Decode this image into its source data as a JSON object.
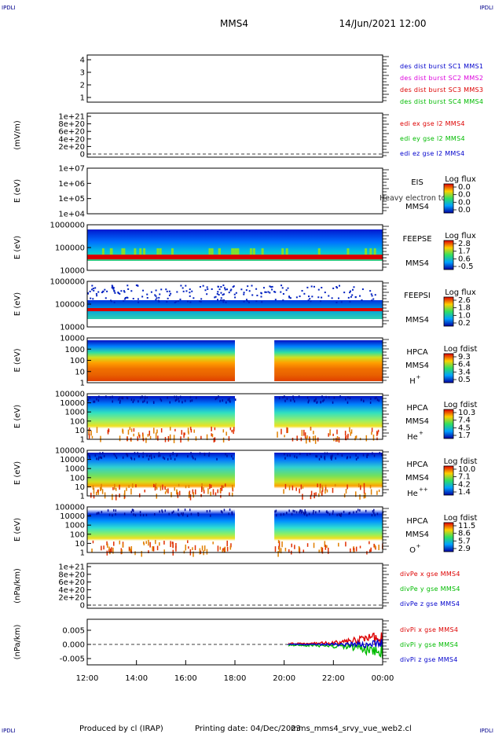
{
  "header": {
    "mission": "MMS4",
    "datetime": "14/Jun/2021 12:00",
    "corner_label": "IPDLI"
  },
  "footer": {
    "producer": "Produced by cl (IRAP)",
    "printing": "Printing date: 04/Dec/2023",
    "script": "mms_mms4_srvy_vue_web2.cl"
  },
  "colors": {
    "blue": "#0000cc",
    "magenta": "#dd00dd",
    "red": "#dd0000",
    "green": "#00bb00"
  },
  "chart_data": {
    "type": "heatmap",
    "x_ticks": [
      "12:00",
      "14:00",
      "16:00",
      "18:00",
      "20:00",
      "22:00",
      "00:00"
    ],
    "panels": [
      {
        "id": "des",
        "type": "line",
        "ylabel": "",
        "y_ticks": [
          "4",
          "3",
          "2",
          "1"
        ],
        "legend": [
          {
            "text": "des dist burst SC1 MMS1",
            "color": "blue"
          },
          {
            "text": "des dist burst SC2 MMS2",
            "color": "magenta"
          },
          {
            "text": "des dist burst SC3 MMS3",
            "color": "red"
          },
          {
            "text": "des dist burst SC4 MMS4",
            "color": "green"
          }
        ]
      },
      {
        "id": "edi",
        "type": "line",
        "ylabel": "(mV/m)",
        "y_ticks": [
          "1e+21",
          "8e+20",
          "6e+20",
          "4e+20",
          "2e+20",
          "0"
        ],
        "legend": [
          {
            "text": "edi ex gse l2 MMS4",
            "color": "red"
          },
          {
            "text": "edi ey gse l2 MMS4",
            "color": "green"
          },
          {
            "text": "edi ez gse l2 MMS4",
            "color": "blue"
          }
        ]
      },
      {
        "id": "eis",
        "type": "heatmap",
        "ylabel": "E (eV)",
        "y_ticks": [
          "1e+07",
          "1e+06",
          "1e+05",
          "1e+04"
        ],
        "instrument": [
          "EIS",
          "MMS4"
        ],
        "overlap_text": "Heavy electron to",
        "colorbar_title": "Log flux",
        "colorbar_ticks": [
          "0.0",
          "0.0",
          "0.0",
          "0.0"
        ]
      },
      {
        "id": "feepse",
        "type": "heatmap",
        "ylabel": "E (eV)",
        "y_ticks": [
          "1000000",
          "100000",
          "10000"
        ],
        "instrument": [
          "FEEPSE",
          "MMS4"
        ],
        "colorbar_title": "Log flux",
        "colorbar_ticks": [
          "2.8",
          "1.7",
          "0.6",
          "-0.5"
        ]
      },
      {
        "id": "feepsi",
        "type": "heatmap",
        "ylabel": "E (eV)",
        "y_ticks": [
          "1000000",
          "100000",
          "10000"
        ],
        "instrument": [
          "FEEPSI",
          "MMS4"
        ],
        "colorbar_title": "Log flux",
        "colorbar_ticks": [
          "2.6",
          "1.8",
          "1.0",
          "0.2"
        ]
      },
      {
        "id": "hpca_h",
        "type": "heatmap",
        "ylabel": "E (eV)",
        "y_ticks": [
          "10000",
          "1000",
          "100",
          "10",
          "1"
        ],
        "instrument": [
          "HPCA",
          "MMS4"
        ],
        "species": "H",
        "species_sup": "+",
        "colorbar_title": "Log fdist",
        "colorbar_ticks": [
          "9.3",
          "6.4",
          "3.4",
          "0.5"
        ]
      },
      {
        "id": "hpca_he",
        "type": "heatmap",
        "ylabel": "E (eV)",
        "y_ticks": [
          "100000",
          "10000",
          "1000",
          "100",
          "10",
          "1"
        ],
        "instrument": [
          "HPCA",
          "MMS4"
        ],
        "species": "He",
        "species_sup": "+",
        "colorbar_title": "Log fdist",
        "colorbar_ticks": [
          "10.3",
          "7.4",
          "4.5",
          "1.7"
        ]
      },
      {
        "id": "hpca_hepp",
        "type": "heatmap",
        "ylabel": "E (eV)",
        "y_ticks": [
          "100000",
          "10000",
          "1000",
          "100",
          "10",
          "1"
        ],
        "instrument": [
          "HPCA",
          "MMS4"
        ],
        "species": "He",
        "species_sup": "++",
        "colorbar_title": "Log fdist",
        "colorbar_ticks": [
          "10.0",
          "7.1",
          "4.2",
          "1.4"
        ]
      },
      {
        "id": "hpca_o",
        "type": "heatmap",
        "ylabel": "E (eV)",
        "y_ticks": [
          "100000",
          "10000",
          "1000",
          "100",
          "10",
          "1"
        ],
        "instrument": [
          "HPCA",
          "MMS4"
        ],
        "species": "O",
        "species_sup": "+",
        "colorbar_title": "Log fdist",
        "colorbar_ticks": [
          "11.5",
          "8.6",
          "5.7",
          "2.9"
        ]
      },
      {
        "id": "divpe",
        "type": "line",
        "ylabel": "(nPa/km)",
        "y_ticks": [
          "1e+21",
          "8e+20",
          "6e+20",
          "4e+20",
          "2e+20",
          "0"
        ],
        "legend": [
          {
            "text": "divPe x gse MMS4",
            "color": "red"
          },
          {
            "text": "divPe y gse MMS4",
            "color": "green"
          },
          {
            "text": "divPe z gse MMS4",
            "color": "blue"
          }
        ]
      },
      {
        "id": "divpi",
        "type": "line",
        "ylabel": "(nPa/km)",
        "y_ticks": [
          "0.005",
          "0.000",
          "-0.005"
        ],
        "legend": [
          {
            "text": "divPi x gse MMS4",
            "color": "red"
          },
          {
            "text": "divPi y gse MMS4",
            "color": "green"
          },
          {
            "text": "divPi z gse MMS4",
            "color": "blue"
          }
        ]
      }
    ]
  }
}
